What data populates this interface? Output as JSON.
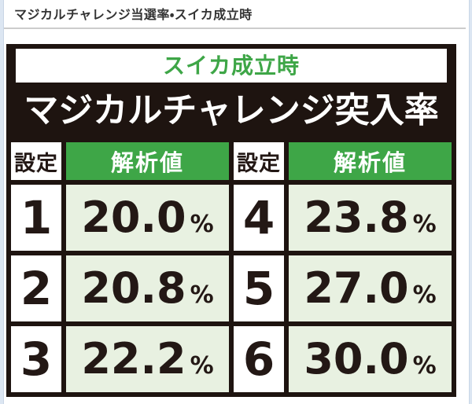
{
  "page": {
    "heading": "マジカルチャレンジ当選率・スイカ成立時"
  },
  "table": {
    "subtitle": "スイカ成立時",
    "title": "マジカルチャレンジ突入率",
    "header": {
      "setting": "設定",
      "value": "解析値"
    },
    "unit": "%",
    "rows": [
      {
        "setting_left": "1",
        "value_left": "20.0",
        "setting_right": "4",
        "value_right": "23.8"
      },
      {
        "setting_left": "2",
        "value_left": "20.8",
        "setting_right": "5",
        "value_right": "27.0"
      },
      {
        "setting_left": "3",
        "value_left": "22.2",
        "setting_right": "6",
        "value_right": "30.0"
      }
    ]
  },
  "colors": {
    "accent_green": "#3ea647",
    "pale_green_cell": "#e8f1e1",
    "frame_black": "#1e1410",
    "text_dark": "#231815",
    "page_edge_blue": "#dce6f2",
    "heading_text": "#333333",
    "divider_gray": "#cccccc"
  }
}
